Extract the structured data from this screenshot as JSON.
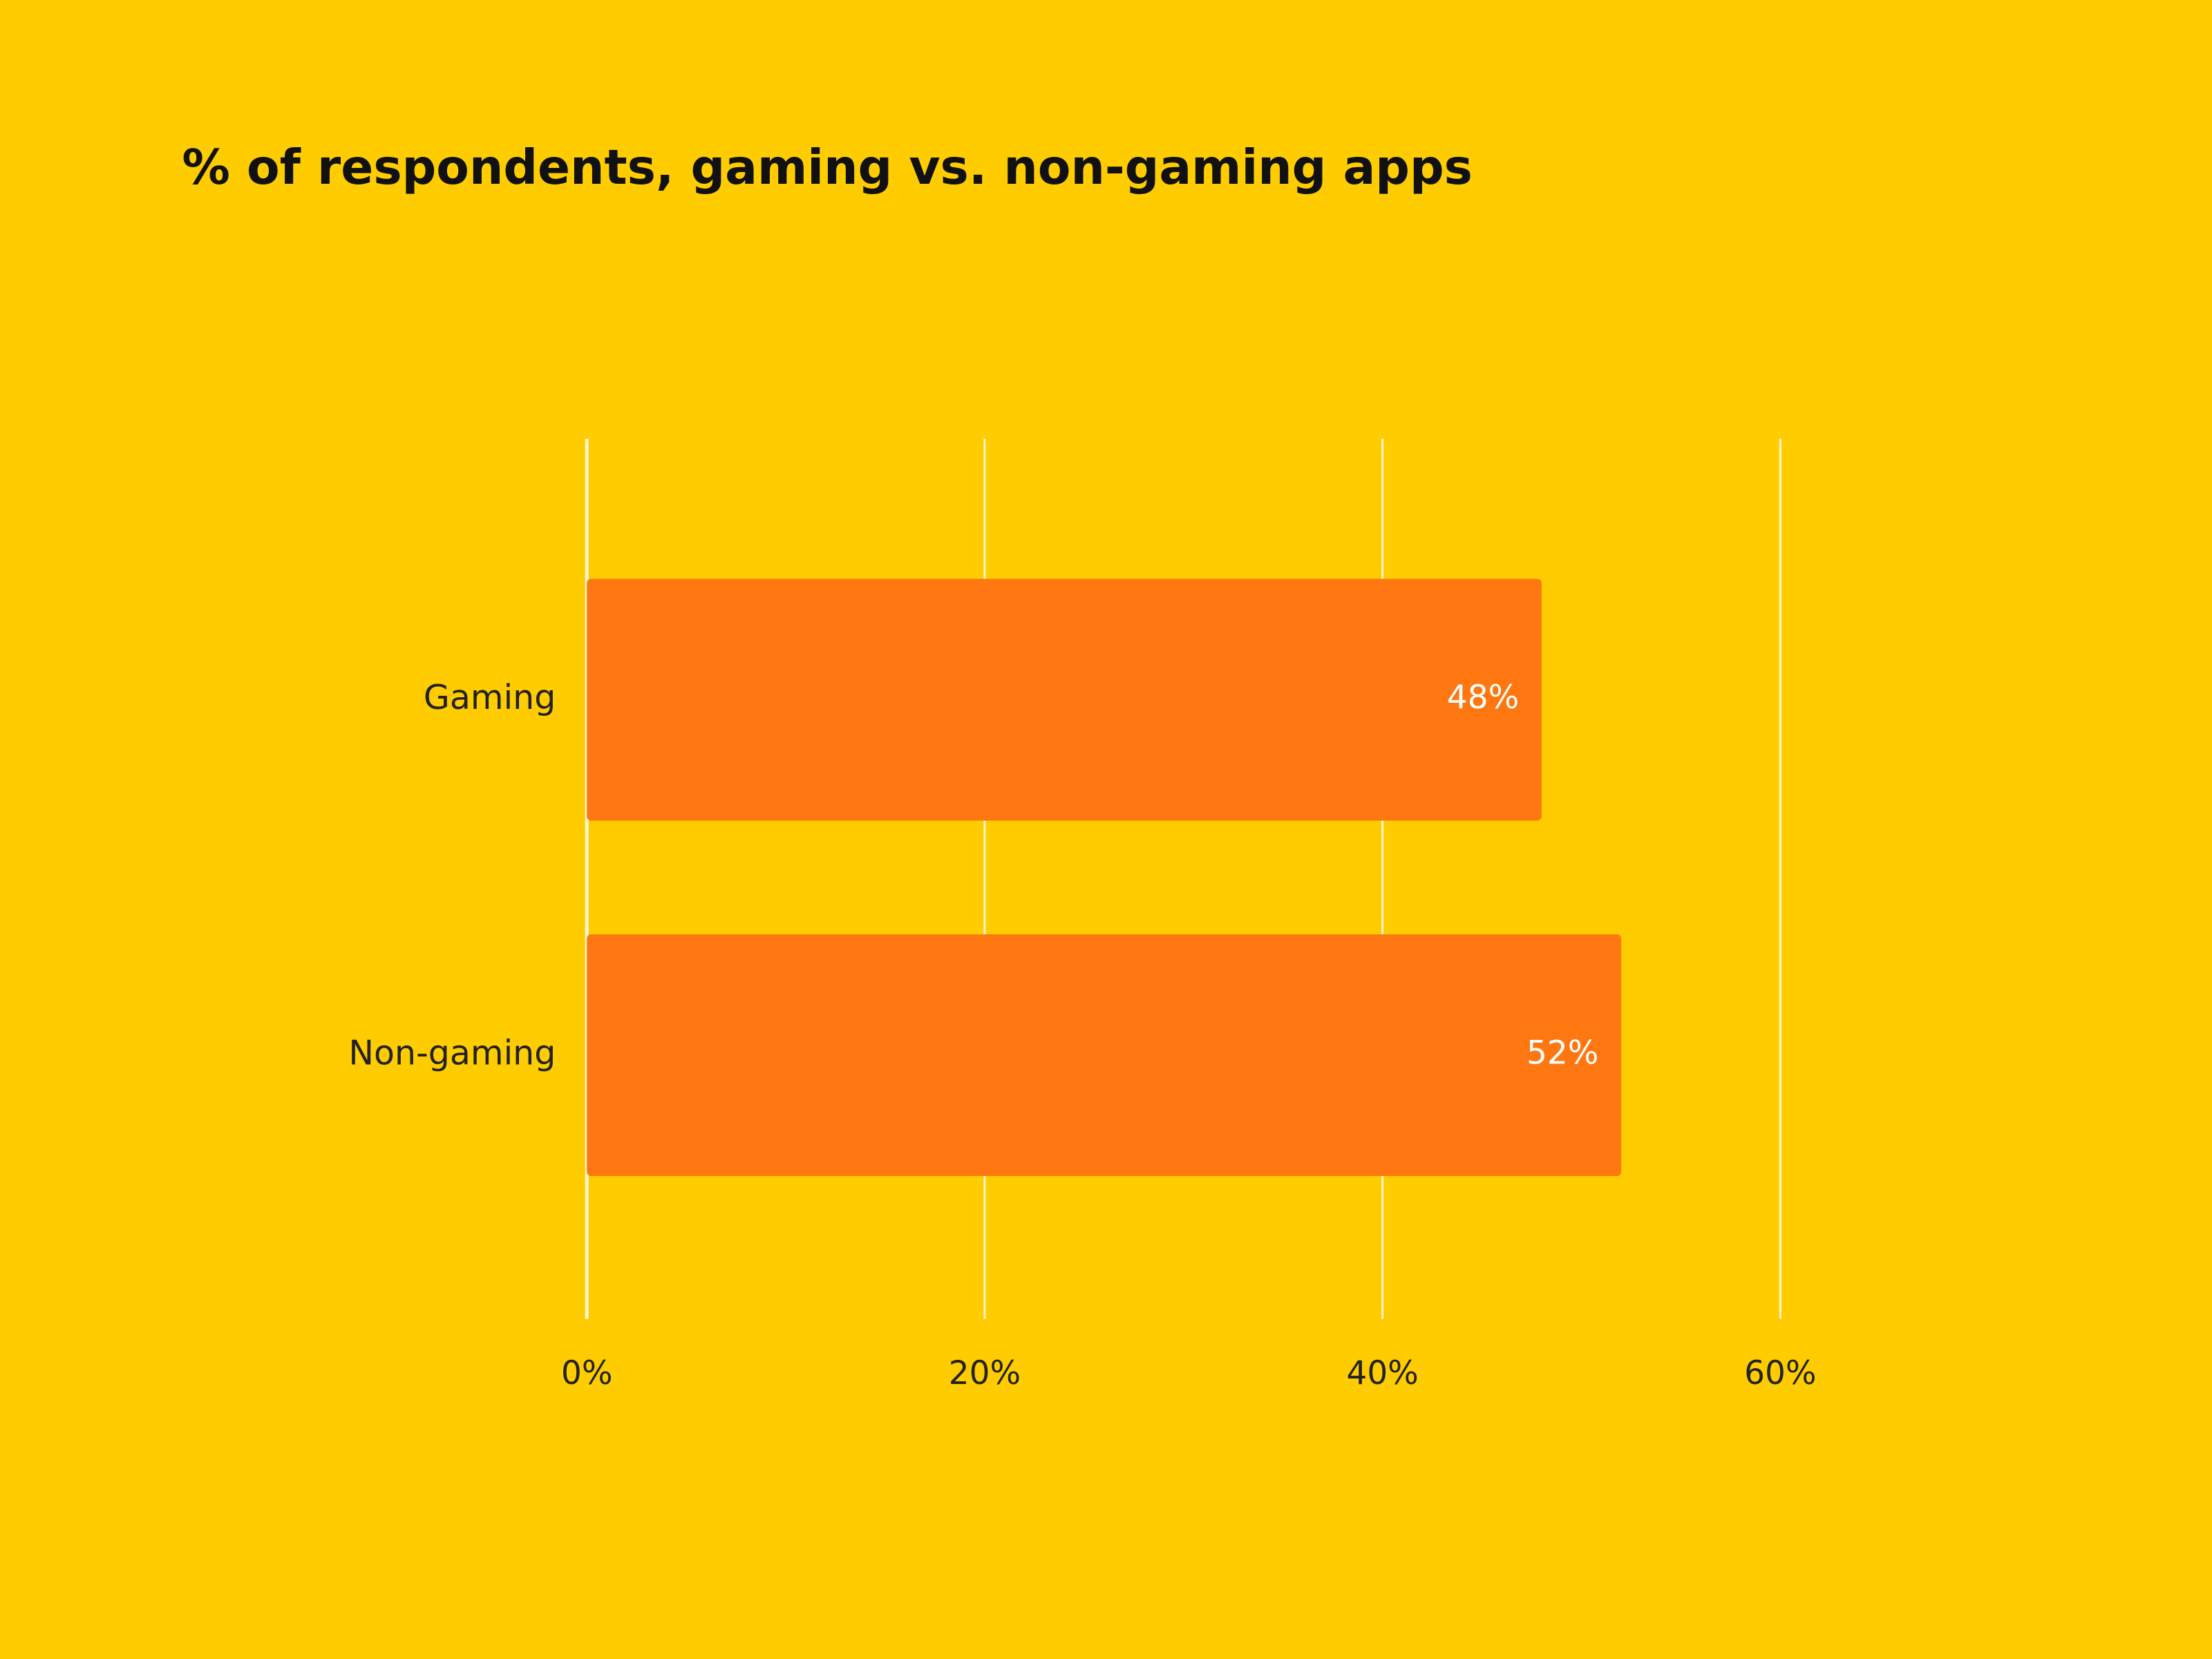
{
  "chart_data": {
    "type": "barh",
    "title": "% of respondents, gaming vs. non-gaming apps",
    "categories": [
      "Gaming",
      "Non-gaming"
    ],
    "values": [
      48,
      52
    ],
    "value_labels": [
      "48%",
      "52%"
    ],
    "color": "#ff7710",
    "xlim": [
      0,
      60
    ],
    "xticks": [
      {
        "value": 0,
        "label": "0%"
      },
      {
        "value": 20,
        "label": "20%"
      },
      {
        "value": 40,
        "label": "40%"
      },
      {
        "value": 60,
        "label": "60%"
      }
    ],
    "grid": true
  }
}
